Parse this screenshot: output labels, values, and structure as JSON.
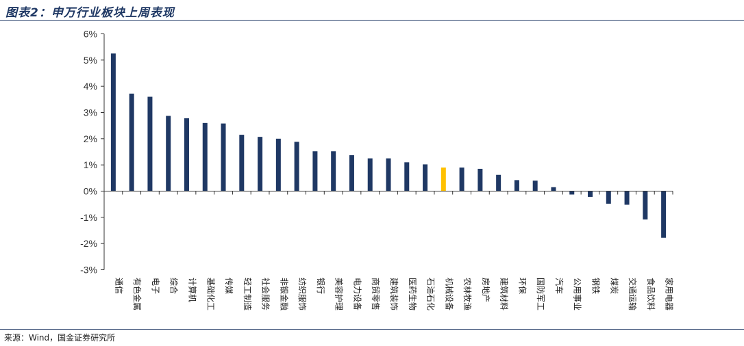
{
  "header": {
    "title": "图表2：申万行业板块上周表现"
  },
  "footer": {
    "source": "来源：Wind，国金证券研究所"
  },
  "colors": {
    "bar": "#1f3864",
    "highlight": "#ffc000",
    "axis": "#333333"
  },
  "chart_data": {
    "type": "bar",
    "title": "图表2：申万行业板块上周表现",
    "xlabel": "",
    "ylabel": "",
    "ylim": [
      -3,
      6
    ],
    "ytick_values": [
      -3,
      -2,
      -1,
      0,
      1,
      2,
      3,
      4,
      5,
      6
    ],
    "ytick_labels": [
      "-3%",
      "-2%",
      "-1%",
      "0%",
      "1%",
      "2%",
      "3%",
      "4%",
      "5%",
      "6%"
    ],
    "grid": false,
    "highlight_category": "机械设备",
    "categories": [
      "通信",
      "有色金属",
      "电子",
      "综合",
      "计算机",
      "基础化工",
      "传媒",
      "轻工制造",
      "社会服务",
      "非银金融",
      "纺织服饰",
      "银行",
      "美容护理",
      "电力设备",
      "商贸零售",
      "建筑装饰",
      "医药生物",
      "石油石化",
      "机械设备",
      "农林牧渔",
      "房地产",
      "建筑材料",
      "环保",
      "国防军工",
      "汽车",
      "公用事业",
      "钢铁",
      "煤炭",
      "交通运输",
      "食品饮料",
      "家用电器"
    ],
    "values": [
      5.25,
      3.72,
      3.6,
      2.87,
      2.78,
      2.6,
      2.58,
      2.15,
      2.07,
      2.0,
      1.88,
      1.52,
      1.52,
      1.37,
      1.25,
      1.25,
      1.1,
      1.02,
      0.9,
      0.9,
      0.85,
      0.62,
      0.42,
      0.4,
      0.15,
      -0.13,
      -0.22,
      -0.48,
      -0.52,
      -1.08,
      -1.78
    ]
  }
}
